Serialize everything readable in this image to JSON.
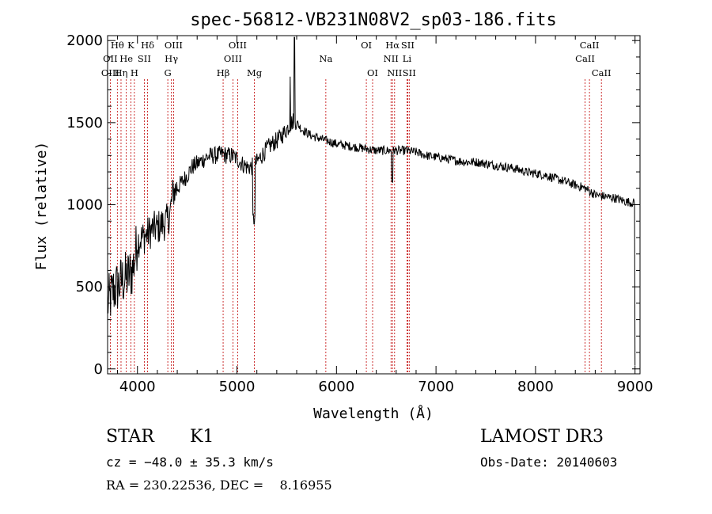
{
  "chart_data": {
    "type": "line",
    "title": "spec-56812-VB231N08V2_sp03-186.fits",
    "xlabel": "Wavelength (Å)",
    "ylabel": "Flux (relative)",
    "xlim": [
      3700,
      9050
    ],
    "ylim": [
      -30,
      2030
    ],
    "xticks": [
      4000,
      5000,
      6000,
      7000,
      8000,
      9000
    ],
    "yticks": [
      0,
      500,
      1000,
      1500,
      2000
    ],
    "xticklabels": [
      "4000",
      "5000",
      "6000",
      "7000",
      "8000",
      "9000"
    ],
    "yticklabels": [
      "0",
      "500",
      "1000",
      "1500",
      "2000"
    ],
    "spectrum_anchor_points": {
      "x": [
        3700,
        3720,
        3760,
        3800,
        3850,
        3900,
        3950,
        3980,
        4000,
        4050,
        4100,
        4150,
        4200,
        4250,
        4300,
        4330,
        4360,
        4400,
        4450,
        4500,
        4550,
        4600,
        4650,
        4700,
        4750,
        4800,
        4850,
        4900,
        4950,
        5000,
        5050,
        5100,
        5150,
        5200,
        5250,
        5300,
        5350,
        5400,
        5450,
        5500,
        5550,
        5580,
        5600,
        5650,
        5700,
        5750,
        5800,
        5850,
        5900,
        5950,
        6000,
        6100,
        6200,
        6300,
        6400,
        6500,
        6550,
        6600,
        6700,
        6800,
        6900,
        7000,
        7100,
        7200,
        7300,
        7400,
        7500,
        7600,
        7700,
        7800,
        7900,
        8000,
        8100,
        8200,
        8300,
        8400,
        8500,
        8600,
        8700,
        8800,
        8900,
        9000
      ],
      "y": [
        400,
        420,
        480,
        500,
        540,
        560,
        600,
        700,
        780,
        800,
        820,
        850,
        860,
        880,
        900,
        960,
        1080,
        1100,
        1140,
        1180,
        1230,
        1250,
        1270,
        1290,
        1300,
        1300,
        1310,
        1300,
        1300,
        1280,
        1250,
        1230,
        1230,
        1260,
        1300,
        1340,
        1370,
        1390,
        1420,
        1460,
        1500,
        1520,
        1500,
        1460,
        1440,
        1420,
        1410,
        1400,
        1390,
        1380,
        1370,
        1360,
        1350,
        1340,
        1330,
        1330,
        1330,
        1330,
        1330,
        1320,
        1300,
        1290,
        1280,
        1270,
        1260,
        1260,
        1250,
        1240,
        1230,
        1220,
        1200,
        1190,
        1180,
        1160,
        1140,
        1120,
        1100,
        1060,
        1050,
        1040,
        1020,
        1010
      ]
    },
    "spectral_lines": [
      {
        "label": "Hθ",
        "x": 3798,
        "row": 0
      },
      {
        "label": "OII",
        "x": 3727,
        "row": 1
      },
      {
        "label": "OIII",
        "x": 3727,
        "row": 2
      },
      {
        "label": "He",
        "x": 3888,
        "row": 1
      },
      {
        "label": "Hη",
        "x": 3835,
        "row": 2
      },
      {
        "label": "K",
        "x": 3934,
        "row": 0
      },
      {
        "label": "H",
        "x": 3969,
        "row": 2
      },
      {
        "label": "SII",
        "x": 4069,
        "row": 1
      },
      {
        "label": "Hδ",
        "x": 4102,
        "row": 0
      },
      {
        "label": "OIII",
        "x": 4363,
        "row": 0
      },
      {
        "label": "Hγ",
        "x": 4341,
        "row": 1
      },
      {
        "label": "G",
        "x": 4305,
        "row": 2
      },
      {
        "label": "OIII",
        "x": 5007,
        "row": 0
      },
      {
        "label": "OIII",
        "x": 4959,
        "row": 1
      },
      {
        "label": "Hβ",
        "x": 4861,
        "row": 2
      },
      {
        "label": "Mg",
        "x": 5175,
        "row": 2
      },
      {
        "label": "Na",
        "x": 5893,
        "row": 1
      },
      {
        "label": "OI",
        "x": 6300,
        "row": 0
      },
      {
        "label": "OI",
        "x": 6363,
        "row": 2
      },
      {
        "label": "Hα",
        "x": 6563,
        "row": 0
      },
      {
        "label": "SII",
        "x": 6716,
        "row": 0
      },
      {
        "label": "NII",
        "x": 6548,
        "row": 1
      },
      {
        "label": "Li",
        "x": 6708,
        "row": 1
      },
      {
        "label": "NII",
        "x": 6584,
        "row": 2
      },
      {
        "label": "SII",
        "x": 6731,
        "row": 2
      },
      {
        "label": "CaII",
        "x": 8542,
        "row": 0
      },
      {
        "label": "CaII",
        "x": 8498,
        "row": 1
      },
      {
        "label": "CaII",
        "x": 8662,
        "row": 2
      }
    ]
  },
  "info": {
    "object_type": "STAR",
    "subclass": "K1",
    "survey": "LAMOST DR3",
    "cz": "cz = −48.0 ± 35.3 km/s",
    "obs_date": "Obs-Date: 20140603",
    "coords": "RA = 230.22536, DEC =    8.16955"
  },
  "colors": {
    "spectrum": "#000000",
    "line_marker": "#c00000",
    "axes": "#000000"
  }
}
